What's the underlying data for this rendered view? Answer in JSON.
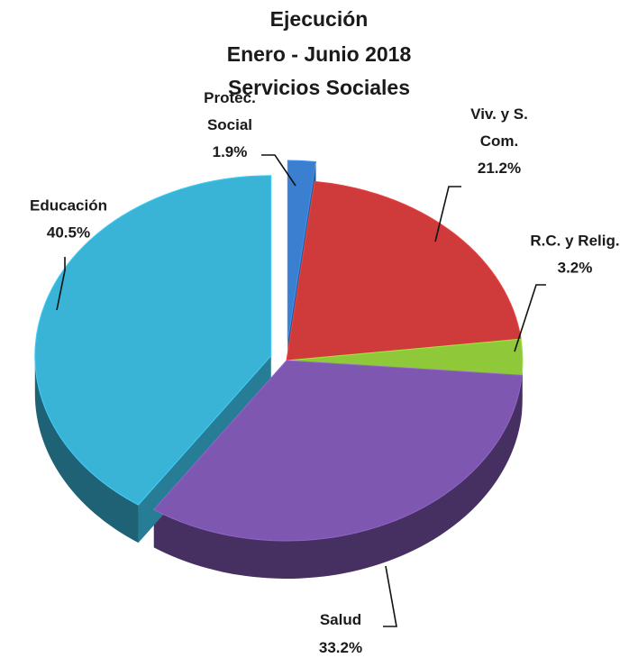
{
  "chart_data": {
    "type": "pie",
    "title_lines": [
      "Ejecución",
      "Enero -  Junio 2018",
      "Servicios Sociales"
    ],
    "slices": [
      {
        "label_lines": [
          "Protec.",
          "Social"
        ],
        "value_label": "1.9%",
        "value": 1.9,
        "color": "#3a7fd0"
      },
      {
        "label_lines": [
          "Viv. y S.",
          "Com."
        ],
        "value_label": "21.2%",
        "value": 21.2,
        "color": "#cf3a3a"
      },
      {
        "label_lines": [
          "R.C. y Relig."
        ],
        "value_label": "3.2%",
        "value": 3.2,
        "color": "#8fc93a"
      },
      {
        "label_lines": [
          "Salud"
        ],
        "value_label": "33.2%",
        "value": 33.2,
        "color": "#7e57b0"
      },
      {
        "label_lines": [
          "Educación"
        ],
        "value_label": "40.5%",
        "value": 40.5,
        "color": "#39b3d6"
      }
    ],
    "style": "3d-exploded"
  }
}
